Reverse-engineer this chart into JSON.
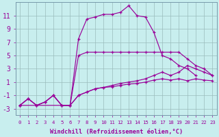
{
  "bg_color": "#c8eeee",
  "line_color": "#990099",
  "grid_color": "#99bbbb",
  "xlim_min": -0.5,
  "xlim_max": 23.5,
  "ylim_min": -4.0,
  "ylim_max": 13.0,
  "xticks": [
    0,
    1,
    2,
    3,
    4,
    5,
    6,
    7,
    8,
    9,
    10,
    11,
    12,
    13,
    14,
    15,
    16,
    17,
    18,
    19,
    20,
    21,
    22,
    23
  ],
  "yticks": [
    -3,
    -1,
    1,
    3,
    5,
    7,
    9,
    11
  ],
  "xlabel": "Windchill (Refroidissement éolien,°C)",
  "xlabel_fontsize": 6.2,
  "tick_fontsize_x": 5.2,
  "tick_fontsize_y": 7.0,
  "line1_x": [
    0,
    1,
    2,
    3,
    4,
    5,
    6,
    7,
    8,
    9,
    10,
    11,
    12,
    13,
    14,
    15,
    16,
    17,
    18,
    19,
    20,
    21
  ],
  "line1_y": [
    -2.5,
    -1.5,
    -2.5,
    -2.0,
    -1.0,
    -2.5,
    -2.5,
    7.5,
    10.5,
    10.8,
    11.2,
    11.2,
    11.5,
    12.5,
    11.0,
    10.8,
    8.5,
    5.0,
    4.5,
    3.5,
    3.0,
    2.0
  ],
  "line2_x": [
    0,
    6,
    7,
    8,
    9,
    10,
    11,
    12,
    13,
    14,
    15,
    16,
    17,
    18,
    19,
    20,
    21,
    22,
    23
  ],
  "line2_y": [
    -2.5,
    -2.5,
    5.0,
    5.5,
    5.5,
    5.5,
    5.5,
    5.5,
    5.5,
    5.5,
    5.5,
    5.5,
    5.5,
    5.5,
    5.5,
    4.5,
    3.5,
    3.0,
    2.0
  ],
  "line3_x": [
    0,
    1,
    2,
    3,
    4,
    5,
    6,
    7,
    8,
    9,
    10,
    11,
    12,
    13,
    14,
    15,
    16,
    17,
    18,
    19,
    20,
    21,
    22,
    23
  ],
  "line3_y": [
    -2.5,
    -1.5,
    -2.5,
    -2.0,
    -1.0,
    -2.5,
    -2.5,
    -1.0,
    -0.5,
    0.0,
    0.2,
    0.5,
    0.8,
    1.0,
    1.2,
    1.5,
    2.0,
    2.5,
    2.0,
    2.5,
    3.5,
    3.0,
    2.5,
    2.0
  ],
  "line4_x": [
    0,
    1,
    2,
    3,
    4,
    5,
    6,
    7,
    8,
    9,
    10,
    11,
    12,
    13,
    14,
    15,
    16,
    17,
    18,
    19,
    20,
    21,
    22,
    23
  ],
  "line4_y": [
    -2.5,
    -1.5,
    -2.5,
    -2.0,
    -1.0,
    -2.5,
    -2.5,
    -1.0,
    -0.5,
    0.0,
    0.2,
    0.3,
    0.5,
    0.7,
    0.8,
    1.0,
    1.3,
    1.5,
    1.3,
    1.5,
    1.2,
    1.5,
    1.3,
    1.2
  ]
}
